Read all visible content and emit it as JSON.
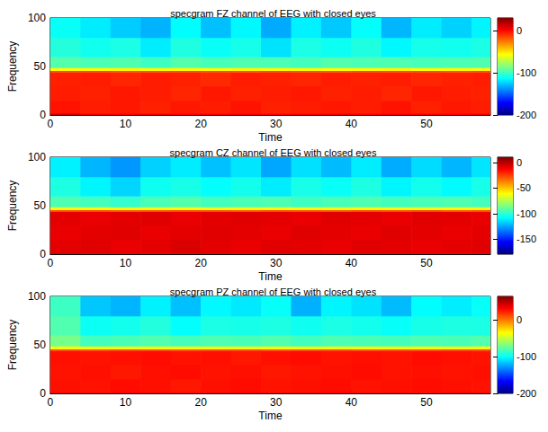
{
  "chart_data": [
    {
      "type": "heatmap",
      "title": "specgram FZ channel of EEG with closed eyes",
      "x_label": "Time",
      "y_label": "Frequency",
      "color": "jet",
      "xlim": [
        0,
        58.5
      ],
      "xticks": [
        0,
        10,
        20,
        30,
        40,
        50
      ],
      "ylim": [
        0,
        100
      ],
      "yticks": [
        0,
        50,
        100
      ],
      "cells": {
        "x_edges": [
          0,
          4,
          8,
          12,
          16,
          20,
          24,
          28,
          32,
          36,
          40,
          44,
          48,
          52,
          56,
          58.5
        ],
        "y_edges": [
          0,
          2,
          15,
          30,
          44,
          46,
          49,
          60,
          80,
          100
        ],
        "values": [
          [
            12,
            4,
            3,
            5,
            2,
            3,
            4,
            2,
            3,
            5,
            2,
            4,
            3,
            2,
            4
          ],
          [
            -3,
            -5,
            -4,
            -6,
            -4,
            -5,
            -3,
            -6,
            -5,
            -4,
            -5,
            -3,
            -6,
            -4,
            -5
          ],
          [
            -5,
            -6,
            -4,
            -5,
            -7,
            -4,
            -6,
            -5,
            -4,
            -6,
            -5,
            -7,
            -4,
            -5,
            -6
          ],
          [
            -6,
            -5,
            -7,
            -5,
            -6,
            -8,
            -5,
            -6,
            -7,
            -5,
            -6,
            -5,
            -7,
            -6,
            -5
          ],
          [
            -16,
            -15,
            -17,
            -16,
            -15,
            -16,
            -17,
            -15,
            -16,
            -17,
            -15,
            -16,
            -15,
            -17,
            -16
          ],
          [
            -56,
            -55,
            -54,
            -57,
            -55,
            -56,
            -54,
            -55,
            -57,
            -56,
            -55,
            -54,
            -56,
            -55,
            -57
          ],
          [
            -95,
            -97,
            -96,
            -100,
            -95,
            -98,
            -96,
            -97,
            -99,
            -95,
            -97,
            -96,
            -98,
            -97,
            -96
          ],
          [
            -106,
            -110,
            -108,
            -118,
            -107,
            -112,
            -109,
            -120,
            -108,
            -111,
            -107,
            -115,
            -109,
            -110,
            -108
          ],
          [
            -112,
            -118,
            -125,
            -131,
            -114,
            -128,
            -115,
            -133,
            -117,
            -126,
            -113,
            -130,
            -118,
            -124,
            -116
          ]
        ]
      },
      "colorbar": {
        "range": [
          -200,
          30
        ],
        "ticks": [
          -200,
          -100,
          0
        ]
      }
    },
    {
      "type": "heatmap",
      "title": "specgram CZ channel of EEG with closed eyes",
      "x_label": "Time",
      "y_label": "Frequency",
      "color": "jet",
      "xlim": [
        0,
        58.5
      ],
      "xticks": [
        0,
        10,
        20,
        30,
        40,
        50
      ],
      "ylim": [
        0,
        100
      ],
      "yticks": [
        0,
        50,
        100
      ],
      "cells": {
        "x_edges": [
          0,
          4,
          8,
          12,
          16,
          20,
          24,
          28,
          32,
          36,
          40,
          44,
          48,
          52,
          56,
          58.5
        ],
        "y_edges": [
          0,
          2,
          15,
          30,
          44,
          46,
          49,
          60,
          80,
          100
        ],
        "values": [
          [
            -6,
            -9,
            -8,
            -10,
            -9,
            -8,
            -10,
            -9,
            -8,
            -9,
            -10,
            -8,
            -9,
            -10,
            -9
          ],
          [
            -8,
            -7,
            -9,
            -8,
            -6,
            -8,
            -9,
            -7,
            -8,
            -9,
            -7,
            -8,
            -9,
            -8,
            -7
          ],
          [
            -9,
            -8,
            -7,
            -9,
            -8,
            -7,
            -8,
            -9,
            -7,
            -8,
            -9,
            -7,
            -8,
            -9,
            -8
          ],
          [
            -8,
            -9,
            -8,
            -7,
            -9,
            -8,
            -7,
            -8,
            -9,
            -7,
            -8,
            -9,
            -7,
            -8,
            -9
          ],
          [
            -27,
            -26,
            -28,
            -27,
            -26,
            -27,
            -28,
            -26,
            -27,
            -28,
            -26,
            -27,
            -26,
            -28,
            -27
          ],
          [
            -62,
            -61,
            -63,
            -62,
            -61,
            -63,
            -62,
            -61,
            -62,
            -63,
            -61,
            -62,
            -63,
            -61,
            -62
          ],
          [
            -94,
            -96,
            -99,
            -95,
            -93,
            -96,
            -95,
            -94,
            -97,
            -95,
            -94,
            -96,
            -95,
            -94,
            -96
          ],
          [
            -103,
            -110,
            -116,
            -106,
            -104,
            -108,
            -105,
            -112,
            -104,
            -107,
            -103,
            -110,
            -105,
            -109,
            -104
          ],
          [
            -111,
            -122,
            -128,
            -117,
            -112,
            -120,
            -113,
            -125,
            -114,
            -121,
            -112,
            -124,
            -115,
            -122,
            -113
          ]
        ]
      },
      "colorbar": {
        "range": [
          -180,
          11
        ],
        "ticks": [
          -150,
          -100,
          -50,
          0
        ]
      }
    },
    {
      "type": "heatmap",
      "title": "specgram PZ channel of EEG with closed eyes",
      "x_label": "Time",
      "y_label": "Frequency",
      "color": "jet",
      "xlim": [
        0,
        58.5
      ],
      "xticks": [
        0,
        10,
        20,
        30,
        40,
        50
      ],
      "ylim": [
        0,
        100
      ],
      "yticks": [
        0,
        50,
        100
      ],
      "cells": {
        "x_edges": [
          0,
          4,
          8,
          12,
          16,
          20,
          24,
          28,
          32,
          36,
          40,
          44,
          48,
          52,
          56,
          58.5
        ],
        "y_edges": [
          0,
          2,
          15,
          30,
          44,
          46,
          49,
          60,
          80,
          100
        ],
        "values": [
          [
            30,
            29,
            31,
            30,
            29,
            30,
            31,
            29,
            30,
            31,
            29,
            30,
            29,
            31,
            30
          ],
          [
            28,
            27,
            29,
            28,
            26,
            28,
            29,
            27,
            28,
            29,
            27,
            28,
            29,
            28,
            27
          ],
          [
            27,
            28,
            26,
            28,
            29,
            27,
            28,
            26,
            27,
            28,
            29,
            27,
            28,
            27,
            28
          ],
          [
            28,
            27,
            28,
            29,
            27,
            28,
            26,
            28,
            29,
            27,
            28,
            27,
            29,
            28,
            27
          ],
          [
            12,
            11,
            13,
            12,
            11,
            12,
            13,
            11,
            12,
            13,
            11,
            12,
            11,
            13,
            12
          ],
          [
            -36,
            -35,
            -37,
            -36,
            -35,
            -36,
            -37,
            -35,
            -36,
            -37,
            -35,
            -36,
            -35,
            -37,
            -36
          ],
          [
            -70,
            -84,
            -82,
            -80,
            -83,
            -81,
            -82,
            -80,
            -84,
            -81,
            -82,
            -83,
            -81,
            -82,
            -80
          ],
          [
            -80,
            -98,
            -96,
            -92,
            -100,
            -94,
            -95,
            -93,
            -97,
            -94,
            -96,
            -99,
            -95,
            -93,
            -94
          ],
          [
            -85,
            -115,
            -120,
            -104,
            -117,
            -102,
            -106,
            -99,
            -121,
            -103,
            -108,
            -118,
            -101,
            -105,
            -99
          ]
        ]
      },
      "colorbar": {
        "range": [
          -200,
          65
        ],
        "ticks": [
          -200,
          -100,
          0
        ]
      }
    }
  ]
}
